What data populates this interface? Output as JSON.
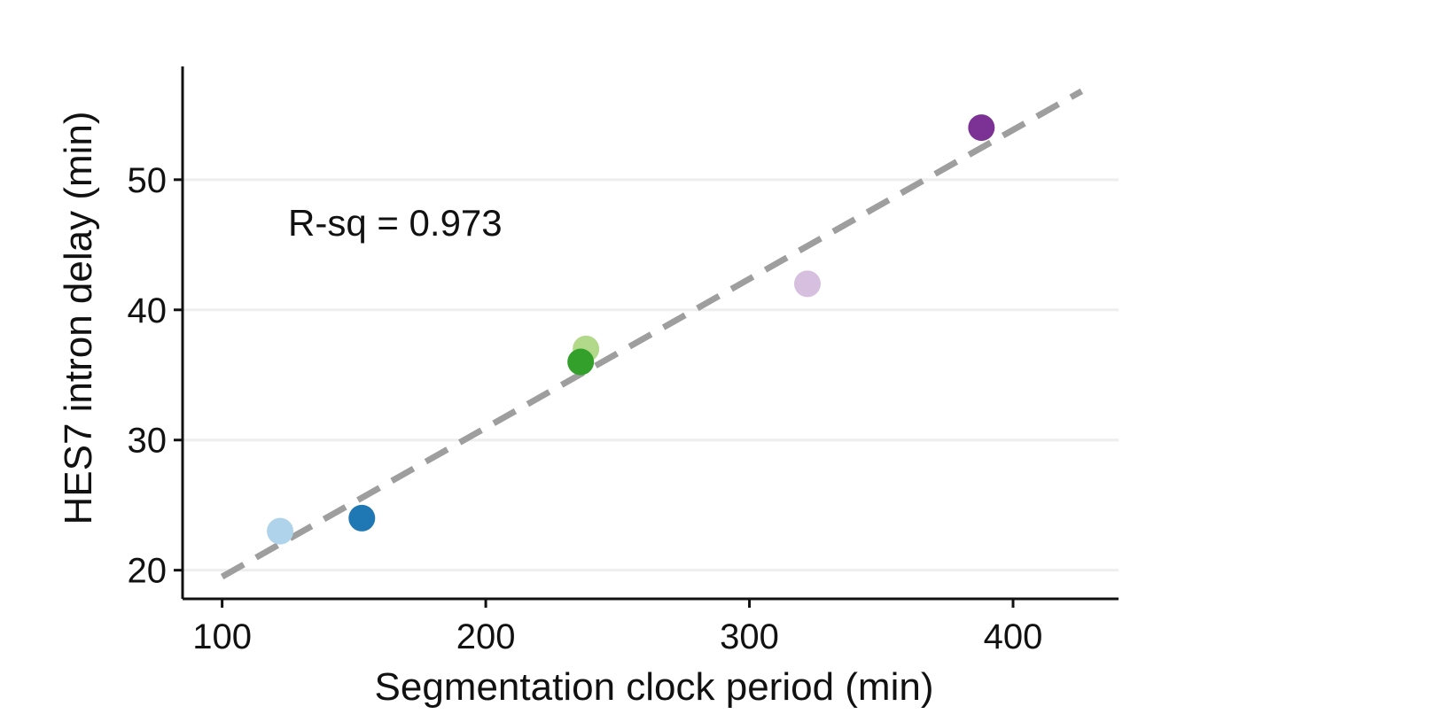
{
  "chart_data": {
    "type": "scatter",
    "xlabel": "Segmentation clock period (min)",
    "ylabel": "HES7 intron delay (min)",
    "xlim": [
      85,
      440
    ],
    "ylim": [
      17.8,
      58.7
    ],
    "x_ticks": [
      100,
      200,
      300,
      400
    ],
    "y_ticks": [
      20,
      30,
      40,
      50
    ],
    "x_tick_labels": [
      "100",
      "200",
      "300",
      "400"
    ],
    "y_tick_labels": [
      "20",
      "30",
      "40",
      "50"
    ],
    "grid": "horizontal",
    "legend": "none",
    "annotation": "R-sq = 0.973",
    "points": [
      {
        "x": 122,
        "y": 23,
        "color": "#aed3ea"
      },
      {
        "x": 153,
        "y": 24,
        "color": "#1f78b4"
      },
      {
        "x": 238,
        "y": 37,
        "color": "#b2d98a"
      },
      {
        "x": 236,
        "y": 36,
        "color": "#33a02c"
      },
      {
        "x": 322,
        "y": 42,
        "color": "#d7c0df"
      },
      {
        "x": 388,
        "y": 54,
        "color": "#7b3294"
      }
    ],
    "fit_line": {
      "x_start": 100,
      "y_start": 19.5,
      "x_end": 426,
      "y_end": 56.8,
      "color": "#9e9e9e",
      "style": "dashed"
    },
    "colors": {
      "axis": "#111111",
      "grid": "#eeeeee"
    }
  }
}
